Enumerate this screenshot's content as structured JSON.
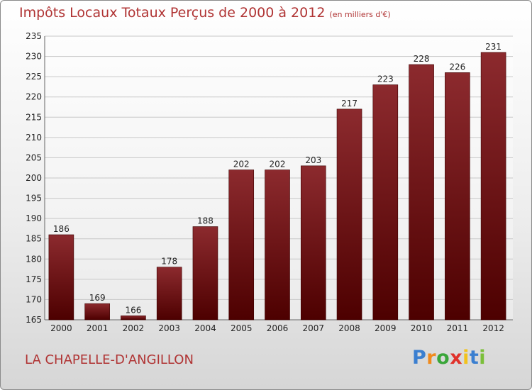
{
  "header": {
    "title": "Impôts Locaux Totaux Perçus de 2000 à 2012",
    "unit": "(en milliers d'€)"
  },
  "footer": {
    "commune": "LA CHAPELLE-D'ANGILLON",
    "brand_letters": [
      "P",
      "r",
      "o",
      "x",
      "i",
      "t",
      "i"
    ],
    "brand_colors": [
      "#3b7fd0",
      "#f08a1c",
      "#3aa63a",
      "#e0322b",
      "#f2c21c",
      "#3b7fd0",
      "#7bbf3a"
    ]
  },
  "colors": {
    "bar_top": "#8c2a2e",
    "bar_bottom": "#4d0000",
    "grid": "#c8c8c8",
    "accent": "#b03434"
  },
  "chart_data": {
    "type": "bar",
    "categories": [
      "2000",
      "2001",
      "2002",
      "2003",
      "2004",
      "2005",
      "2006",
      "2007",
      "2008",
      "2009",
      "2010",
      "2011",
      "2012"
    ],
    "values": [
      186,
      169,
      166,
      178,
      188,
      202,
      202,
      203,
      217,
      223,
      228,
      226,
      231
    ],
    "title": "Impôts Locaux Totaux Perçus de 2000 à 2012",
    "xlabel": "",
    "ylabel": "",
    "ylim": [
      165,
      235
    ],
    "yticks": [
      165,
      170,
      175,
      180,
      185,
      190,
      195,
      200,
      205,
      210,
      215,
      220,
      225,
      230,
      235
    ],
    "grid": true,
    "legend": "none"
  }
}
